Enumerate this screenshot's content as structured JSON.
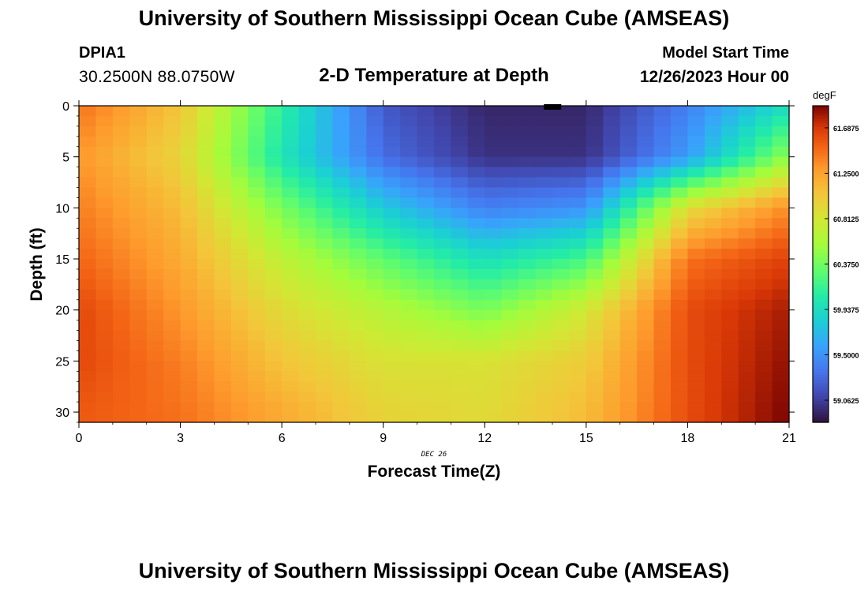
{
  "header": {
    "title": "University of Southern Mississippi Ocean Cube (AMSEAS)",
    "station": "DPIA1",
    "coords": "30.2500N  88.0750W",
    "subtitle": "2-D Temperature at Depth",
    "model_start_label": "Model Start Time",
    "model_start_value": "12/26/2023 Hour 00"
  },
  "footer": {
    "title": "University of Southern Mississippi Ocean Cube (AMSEAS)"
  },
  "chart_data": {
    "type": "heatmap",
    "title": "2-D Temperature at Depth",
    "xlabel": "Forecast Time(Z)",
    "ylabel": "Depth (ft)",
    "xlim": [
      0,
      21
    ],
    "ylim": [
      0,
      31
    ],
    "x_ticks": [
      0,
      3,
      6,
      9,
      12,
      15,
      18,
      21
    ],
    "y_ticks": [
      0,
      5,
      10,
      15,
      20,
      25,
      30
    ],
    "date_label": "DEC 26",
    "colorbar": {
      "unit": "degF",
      "range": [
        58.85,
        61.9
      ],
      "ticks": [
        "61.6875",
        "61.2500",
        "60.8125",
        "60.3750",
        "59.9375",
        "59.5000",
        "59.0625"
      ]
    },
    "profiles": {
      "x_hours": [
        0,
        3,
        6,
        9,
        12,
        15,
        18,
        21
      ],
      "depth_ft": [
        0,
        5,
        10,
        15,
        20,
        25,
        30
      ],
      "temperature_degF": [
        [
          61.45,
          61.05,
          60.1,
          59.2,
          58.95,
          58.95,
          59.4,
          59.95
        ],
        [
          61.3,
          60.95,
          60.0,
          59.3,
          59.0,
          59.0,
          59.55,
          60.5
        ],
        [
          61.4,
          61.1,
          60.4,
          59.8,
          59.4,
          59.5,
          60.9,
          61.35
        ],
        [
          61.5,
          61.2,
          60.7,
          60.3,
          59.95,
          60.2,
          61.45,
          61.65
        ],
        [
          61.62,
          61.3,
          60.9,
          60.65,
          60.4,
          60.8,
          61.6,
          61.8
        ],
        [
          61.62,
          61.4,
          61.05,
          60.85,
          60.85,
          61.0,
          61.6,
          61.85
        ],
        [
          61.55,
          61.45,
          61.2,
          60.95,
          60.9,
          61.1,
          61.6,
          61.9
        ]
      ]
    }
  }
}
